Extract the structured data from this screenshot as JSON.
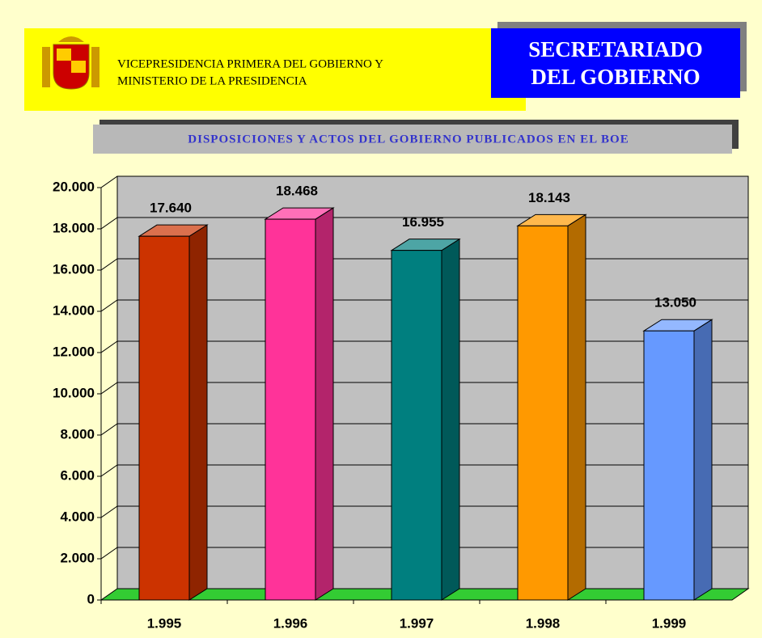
{
  "header": {
    "ministry_line1": "VICEPRESIDENCIA PRIMERA DEL GOBIERNO Y",
    "ministry_line2": "MINISTERIO DE LA PRESIDENCIA",
    "box_line1": "SECRETARIADO",
    "box_line2": "DEL GOBIERNO"
  },
  "chart_data": {
    "type": "bar",
    "title": "DISPOSICIONES Y ACTOS DEL GOBIERNO PUBLICADOS EN EL BOE",
    "categories": [
      "1.995",
      "1.996",
      "1.997",
      "1.998",
      "1.999"
    ],
    "values": [
      17640,
      18468,
      16955,
      18143,
      13050
    ],
    "value_labels": [
      "17.640",
      "18.468",
      "16.955",
      "18.143",
      "13.050"
    ],
    "colors": [
      "#cc3300",
      "#ff3399",
      "#007f7f",
      "#ff9900",
      "#6699ff"
    ],
    "ylim": [
      0,
      20000
    ],
    "yticks": [
      0,
      {
        "value": 2000,
        "label": "2.000"
      },
      {
        "value": 4000,
        "label": "4.000"
      },
      {
        "value": 6000,
        "label": "6.000"
      },
      {
        "value": 8000,
        "label": "8.000"
      },
      {
        "value": 10000,
        "label": "10.000"
      },
      {
        "value": 12000,
        "label": "12.000"
      },
      {
        "value": 14000,
        "label": "14.000"
      },
      {
        "value": 16000,
        "label": "16.000"
      },
      {
        "value": 18000,
        "label": "18.000"
      },
      {
        "value": 20000,
        "label": "20.000"
      }
    ],
    "grid": true
  }
}
